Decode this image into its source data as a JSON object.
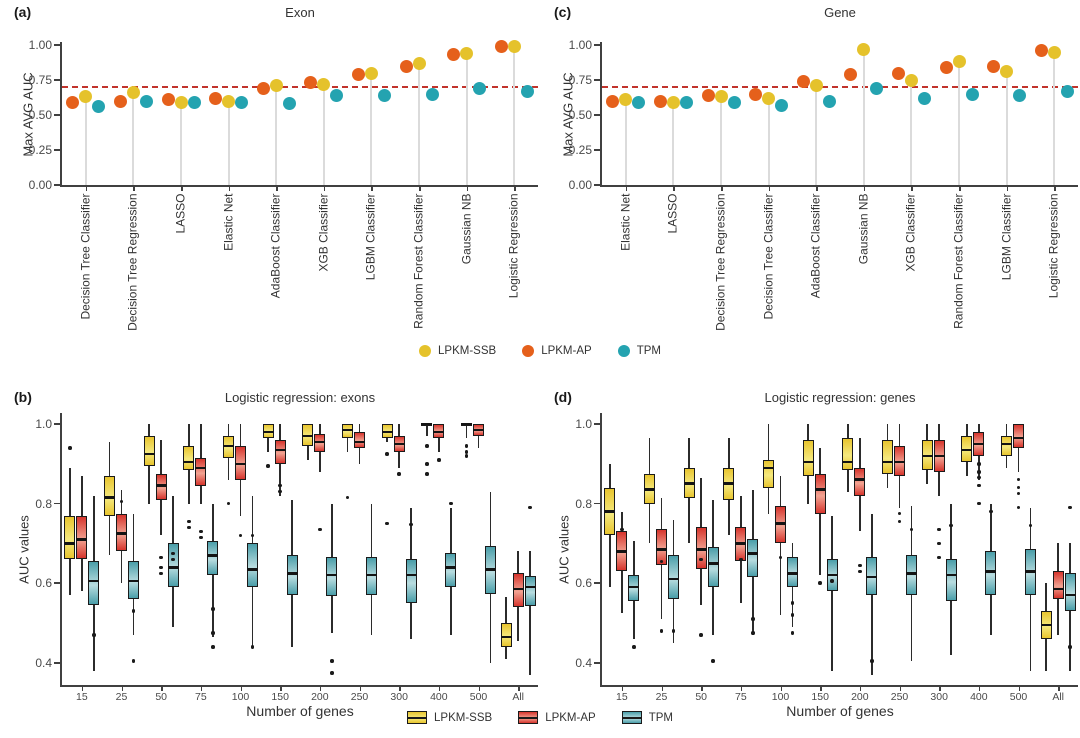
{
  "panels": {
    "a": {
      "letter": "(a)"
    },
    "b": {
      "letter": "(b)"
    },
    "c": {
      "letter": "(c)"
    },
    "d": {
      "letter": "(d)"
    }
  },
  "legend_dots": {
    "items": [
      {
        "label": "LPKM-SSB",
        "color": "#E5C22B"
      },
      {
        "label": "LPKM-AP",
        "color": "#E5601B"
      },
      {
        "label": "TPM",
        "color": "#24A3B0"
      }
    ]
  },
  "legend_boxes": {
    "items": [
      {
        "label": "LPKM-SSB",
        "color": "#E8C52F",
        "light": "#F5E97E"
      },
      {
        "label": "LPKM-AP",
        "color": "#D6352D",
        "light": "#F2A392"
      },
      {
        "label": "TPM",
        "color": "#4A9EA9",
        "light": "#B9DDE0"
      }
    ]
  },
  "chart_data": [
    {
      "panel": "a",
      "type": "lollipop",
      "title": "Exon",
      "ylabel": "Max AVG AUC",
      "ylim": [
        0,
        1.05
      ],
      "grid": false,
      "hline": 0.7,
      "hline_color": "#C2332B",
      "ytick_labels": [
        "0.00",
        "0.25",
        "0.50",
        "0.75",
        "1.00"
      ],
      "ytick_values": [
        0,
        0.25,
        0.5,
        0.75,
        1.0
      ],
      "categories": [
        "Decision Tree Classifier",
        "Decision Tree Regression",
        "LASSO",
        "Elastic Net",
        "AdaBoost Classifier",
        "XGB Classifier",
        "LGBM Classifier",
        "Random Forest Classifier",
        "Gaussian NB",
        "Logistic Regression"
      ],
      "series": [
        {
          "name": "LPKM-SSB",
          "color": "#E5C22B",
          "values": [
            0.63,
            0.66,
            0.59,
            0.6,
            0.71,
            0.72,
            0.8,
            0.87,
            0.94,
            0.99
          ]
        },
        {
          "name": "LPKM-AP",
          "color": "#E5601B",
          "values": [
            0.59,
            0.6,
            0.61,
            0.62,
            0.69,
            0.73,
            0.79,
            0.85,
            0.93,
            0.99
          ]
        },
        {
          "name": "TPM",
          "color": "#24A3B0",
          "values": [
            0.56,
            0.6,
            0.59,
            0.59,
            0.58,
            0.64,
            0.64,
            0.65,
            0.69,
            0.67
          ]
        }
      ]
    },
    {
      "panel": "c",
      "type": "lollipop",
      "title": "Gene",
      "ylabel": "Max AVG AUC",
      "ylim": [
        0,
        1.05
      ],
      "grid": false,
      "hline": 0.7,
      "hline_color": "#C2332B",
      "ytick_labels": [
        "0.00",
        "0.25",
        "0.50",
        "0.75",
        "1.00"
      ],
      "ytick_values": [
        0,
        0.25,
        0.5,
        0.75,
        1.0
      ],
      "categories": [
        "Elastic Net",
        "LASSO",
        "Decision Tree Regression",
        "Decision Tree Classifier",
        "AdaBoost Classifier",
        "Gaussian NB",
        "XGB Classifier",
        "Random Forest Classifier",
        "LGBM Classifier",
        "Logistic Regression"
      ],
      "series": [
        {
          "name": "LPKM-SSB",
          "color": "#E5C22B",
          "values": [
            0.61,
            0.59,
            0.63,
            0.62,
            0.71,
            0.97,
            0.75,
            0.88,
            0.81,
            0.95
          ]
        },
        {
          "name": "LPKM-AP",
          "color": "#E5601B",
          "values": [
            0.6,
            0.6,
            0.64,
            0.65,
            0.74,
            0.79,
            0.8,
            0.84,
            0.85,
            0.96
          ]
        },
        {
          "name": "TPM",
          "color": "#24A3B0",
          "values": [
            0.59,
            0.59,
            0.59,
            0.57,
            0.6,
            0.69,
            0.62,
            0.65,
            0.64,
            0.67
          ]
        }
      ]
    },
    {
      "panel": "b",
      "type": "boxplot",
      "title": "Logistic regression: exons",
      "xlabel": "Number of genes",
      "ylabel": "AUC values",
      "ylim": [
        0.345,
        1.02
      ],
      "ytick_labels": [
        "1.0",
        "0.8",
        "0.6",
        "0.4"
      ],
      "ytick_values": [
        1.0,
        0.8,
        0.6,
        0.4
      ],
      "categories": [
        "15",
        "25",
        "50",
        "75",
        "100",
        "150",
        "200",
        "250",
        "300",
        "400",
        "500",
        "All"
      ],
      "box_format": "[whisker_low, q1, median, q3, whisker_high]",
      "series": [
        {
          "name": "LPKM-SSB",
          "color": "#E8C52F",
          "light": "#F5E97E",
          "boxes": [
            [
              0.57,
              0.66,
              0.7,
              0.77,
              0.89
            ],
            [
              0.67,
              0.77,
              0.815,
              0.87,
              0.955
            ],
            [
              0.8,
              0.895,
              0.925,
              0.97,
              1.0
            ],
            [
              0.8,
              0.885,
              0.905,
              0.945,
              1.0
            ],
            [
              0.86,
              0.915,
              0.945,
              0.97,
              1.0
            ],
            [
              0.93,
              0.965,
              0.98,
              1.0,
              1.0
            ],
            [
              0.91,
              0.945,
              0.97,
              1.0,
              1.0
            ],
            [
              0.93,
              0.965,
              0.985,
              1.0,
              1.0
            ],
            [
              0.955,
              0.965,
              0.98,
              1.0,
              1.0
            ],
            [
              0.97,
              1.0,
              1.0,
              1.0,
              1.0
            ],
            [
              0.965,
              1.0,
              1.0,
              1.0,
              1.0
            ],
            [
              0.41,
              0.44,
              0.465,
              0.5,
              0.565
            ]
          ],
          "outliers": [
            [
              0.94
            ],
            [],
            [],
            [
              0.755,
              0.74
            ],
            [
              0.8
            ],
            [
              0.895
            ],
            [],
            [
              0.815
            ],
            [
              0.925,
              0.75
            ],
            [
              0.945,
              0.9,
              0.875
            ],
            [
              0.945,
              0.93,
              0.92
            ],
            []
          ]
        },
        {
          "name": "LPKM-AP",
          "color": "#D6352D",
          "light": "#F2A392",
          "boxes": [
            [
              0.58,
              0.66,
              0.71,
              0.77,
              0.87
            ],
            [
              0.6,
              0.68,
              0.725,
              0.775,
              0.835
            ],
            [
              0.72,
              0.81,
              0.845,
              0.875,
              0.96
            ],
            [
              0.8,
              0.845,
              0.89,
              0.915,
              1.0
            ],
            [
              0.77,
              0.86,
              0.9,
              0.945,
              1.0
            ],
            [
              0.82,
              0.9,
              0.935,
              0.96,
              1.0
            ],
            [
              0.88,
              0.93,
              0.955,
              0.975,
              1.0
            ],
            [
              0.9,
              0.94,
              0.955,
              0.98,
              1.0
            ],
            [
              0.89,
              0.93,
              0.95,
              0.97,
              1.0
            ],
            [
              0.93,
              0.965,
              0.98,
              1.0,
              1.0
            ],
            [
              0.94,
              0.97,
              0.985,
              1.0,
              1.0
            ],
            [
              0.455,
              0.54,
              0.585,
              0.625,
              0.68
            ]
          ],
          "outliers": [
            [],
            [
              0.805
            ],
            [
              0.665,
              0.64,
              0.625
            ],
            [
              0.73,
              0.715
            ],
            [
              0.72
            ],
            [
              0.845,
              0.83
            ],
            [
              0.735
            ],
            [],
            [
              0.875
            ],
            [
              0.91
            ],
            [],
            []
          ]
        },
        {
          "name": "TPM",
          "color": "#4A9EA9",
          "light": "#B9DDE0",
          "boxes": [
            [
              0.38,
              0.545,
              0.605,
              0.655,
              0.82
            ],
            [
              0.47,
              0.56,
              0.605,
              0.655,
              0.775
            ],
            [
              0.49,
              0.59,
              0.64,
              0.7,
              0.82
            ],
            [
              0.465,
              0.62,
              0.67,
              0.705,
              0.8
            ],
            [
              0.44,
              0.59,
              0.635,
              0.7,
              0.82
            ],
            [
              0.44,
              0.57,
              0.625,
              0.67,
              0.81
            ],
            [
              0.475,
              0.567,
              0.62,
              0.665,
              0.8
            ],
            [
              0.47,
              0.57,
              0.62,
              0.665,
              0.8
            ],
            [
              0.46,
              0.55,
              0.62,
              0.66,
              0.79
            ],
            [
              0.47,
              0.59,
              0.64,
              0.677,
              0.79
            ],
            [
              0.4,
              0.573,
              0.635,
              0.693,
              0.83
            ],
            [
              0.37,
              0.543,
              0.59,
              0.618,
              0.68
            ]
          ],
          "outliers": [
            [
              0.47
            ],
            [
              0.53,
              0.405
            ],
            [
              0.675,
              0.66
            ],
            [
              0.535,
              0.475,
              0.44
            ],
            [
              0.72,
              0.44
            ],
            [],
            [
              0.405,
              0.375
            ],
            [],
            [
              0.748
            ],
            [
              0.8
            ],
            [],
            [
              0.79
            ]
          ]
        }
      ]
    },
    {
      "panel": "d",
      "type": "boxplot",
      "title": "Logistic regression: genes",
      "xlabel": "Number of genes",
      "ylabel": "AUC values",
      "ylim": [
        0.345,
        1.02
      ],
      "ytick_labels": [
        "1.0",
        "0.8",
        "0.6",
        "0.4"
      ],
      "ytick_values": [
        1.0,
        0.8,
        0.6,
        0.4
      ],
      "categories": [
        "15",
        "25",
        "50",
        "75",
        "100",
        "150",
        "200",
        "250",
        "300",
        "400",
        "500",
        "All"
      ],
      "box_format": "[whisker_low, q1, median, q3, whisker_high]",
      "series": [
        {
          "name": "LPKM-SSB",
          "color": "#E8C52F",
          "light": "#F5E97E",
          "boxes": [
            [
              0.59,
              0.72,
              0.78,
              0.84,
              0.9
            ],
            [
              0.7,
              0.8,
              0.835,
              0.875,
              0.965
            ],
            [
              0.7,
              0.815,
              0.85,
              0.89,
              0.965
            ],
            [
              0.72,
              0.81,
              0.85,
              0.89,
              0.965
            ],
            [
              0.775,
              0.84,
              0.89,
              0.91,
              1.0
            ],
            [
              0.8,
              0.87,
              0.905,
              0.96,
              1.0
            ],
            [
              0.83,
              0.885,
              0.905,
              0.965,
              1.0
            ],
            [
              0.84,
              0.875,
              0.905,
              0.96,
              1.0
            ],
            [
              0.85,
              0.885,
              0.92,
              0.96,
              1.0
            ],
            [
              0.87,
              0.905,
              0.935,
              0.97,
              1.0
            ],
            [
              0.89,
              0.92,
              0.95,
              0.97,
              1.0
            ],
            [
              0.38,
              0.46,
              0.495,
              0.53,
              0.6
            ]
          ],
          "outliers": [
            [],
            [],
            [],
            [],
            [],
            [],
            [],
            [],
            [],
            [],
            [],
            []
          ]
        },
        {
          "name": "LPKM-AP",
          "color": "#D6352D",
          "light": "#F2A392",
          "boxes": [
            [
              0.525,
              0.63,
              0.68,
              0.73,
              0.78
            ],
            [
              0.51,
              0.645,
              0.685,
              0.735,
              0.815
            ],
            [
              0.545,
              0.635,
              0.685,
              0.74,
              0.865
            ],
            [
              0.55,
              0.655,
              0.7,
              0.74,
              0.82
            ],
            [
              0.52,
              0.7,
              0.75,
              0.795,
              0.87
            ],
            [
              0.62,
              0.775,
              0.835,
              0.875,
              0.94
            ],
            [
              0.73,
              0.82,
              0.86,
              0.89,
              0.965
            ],
            [
              0.79,
              0.87,
              0.905,
              0.945,
              1.0
            ],
            [
              0.82,
              0.88,
              0.92,
              0.96,
              1.0
            ],
            [
              0.86,
              0.92,
              0.95,
              0.98,
              1.0
            ],
            [
              0.88,
              0.94,
              0.965,
              1.0,
              1.0
            ],
            [
              0.47,
              0.56,
              0.585,
              0.63,
              0.7
            ]
          ],
          "outliers": [
            [
              0.735
            ],
            [
              0.655,
              0.48
            ],
            [
              0.66,
              0.47
            ],
            [
              0.66
            ],
            [
              0.665
            ],
            [
              0.6
            ],
            [
              0.645,
              0.63
            ],
            [
              0.775,
              0.755
            ],
            [
              0.735,
              0.7,
              0.665
            ],
            [
              0.9,
              0.88,
              0.865,
              0.845,
              0.8
            ],
            [
              0.86,
              0.84,
              0.825,
              0.79
            ],
            []
          ]
        },
        {
          "name": "TPM",
          "color": "#4A9EA9",
          "light": "#B9DDE0",
          "boxes": [
            [
              0.46,
              0.555,
              0.59,
              0.62,
              0.705
            ],
            [
              0.45,
              0.56,
              0.61,
              0.67,
              0.76
            ],
            [
              0.47,
              0.59,
              0.65,
              0.69,
              0.81
            ],
            [
              0.47,
              0.615,
              0.675,
              0.71,
              0.835
            ],
            [
              0.49,
              0.59,
              0.625,
              0.665,
              0.7
            ],
            [
              0.38,
              0.58,
              0.62,
              0.66,
              0.77
            ],
            [
              0.37,
              0.57,
              0.615,
              0.665,
              0.775
            ],
            [
              0.405,
              0.57,
              0.625,
              0.67,
              0.795
            ],
            [
              0.42,
              0.555,
              0.62,
              0.66,
              0.8
            ],
            [
              0.47,
              0.57,
              0.63,
              0.68,
              0.8
            ],
            [
              0.38,
              0.57,
              0.63,
              0.685,
              0.79
            ],
            [
              0.38,
              0.53,
              0.57,
              0.625,
              0.7
            ]
          ],
          "outliers": [
            [
              0.44
            ],
            [
              0.48
            ],
            [
              0.405
            ],
            [
              0.51,
              0.475
            ],
            [
              0.55,
              0.52,
              0.475
            ],
            [
              0.605
            ],
            [
              0.405
            ],
            [
              0.735
            ],
            [
              0.745
            ],
            [
              0.78
            ],
            [
              0.745
            ],
            [
              0.79,
              0.44
            ]
          ]
        }
      ]
    }
  ]
}
